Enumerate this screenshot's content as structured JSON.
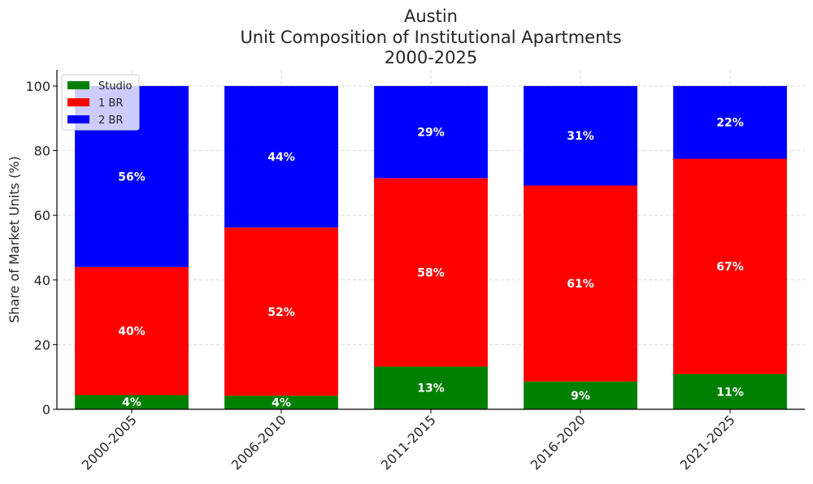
{
  "chart_data": {
    "type": "bar",
    "stacked": true,
    "title_lines": [
      "Austin",
      "Unit Composition of Institutional Apartments",
      "2000-2025"
    ],
    "xlabel": "",
    "ylabel": "Share of Market Units (%)",
    "ylim": [
      0,
      105
    ],
    "yticks": [
      0,
      20,
      40,
      60,
      80,
      100
    ],
    "grid": true,
    "legend_position": "top-left",
    "categories": [
      "2000-2005",
      "2006-2010",
      "2011-2015",
      "2016-2020",
      "2021-2025"
    ],
    "series": [
      {
        "name": "Studio",
        "color": "#008000",
        "values": [
          4.4,
          4.2,
          13.2,
          8.6,
          10.9
        ],
        "labels": [
          "4%",
          "4%",
          "13%",
          "9%",
          "11%"
        ]
      },
      {
        "name": "1 BR",
        "color": "#ff0000",
        "values": [
          39.6,
          52.0,
          58.3,
          60.6,
          66.6
        ],
        "labels": [
          "40%",
          "52%",
          "58%",
          "61%",
          "67%"
        ]
      },
      {
        "name": "2 BR",
        "color": "#0000ff",
        "values": [
          56.0,
          43.8,
          28.5,
          30.8,
          22.5
        ],
        "labels": [
          "56%",
          "44%",
          "29%",
          "31%",
          "22%"
        ]
      }
    ]
  }
}
